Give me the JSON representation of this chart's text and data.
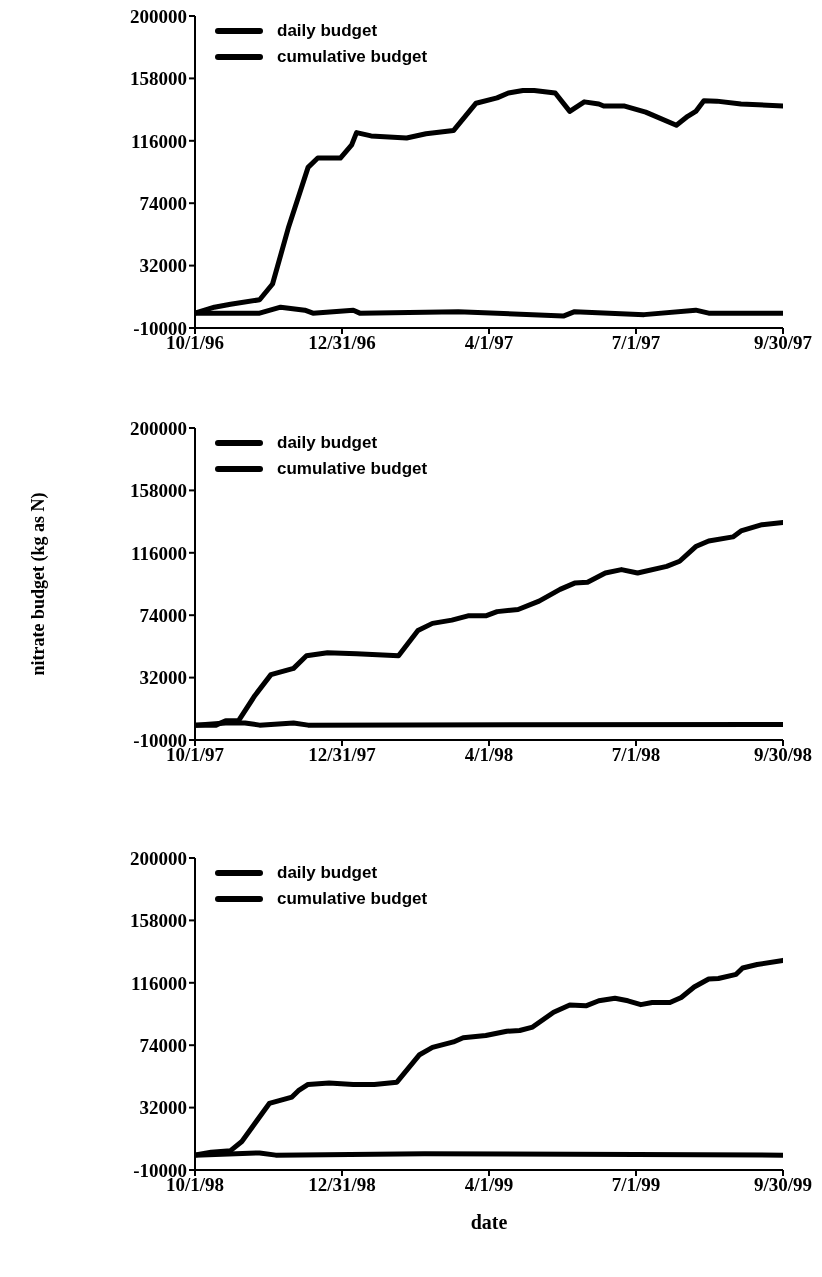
{
  "chart_data": [
    {
      "type": "line",
      "legend": "top left",
      "xlim": [
        "1996-10-01",
        "1997-09-30"
      ],
      "xticks": [
        {
          "value": "1996-10-01",
          "label": "10/1/96"
        },
        {
          "value": "1996-12-31",
          "label": "12/31/96"
        },
        {
          "value": "1997-04-01",
          "label": "4/1/97"
        },
        {
          "value": "1997-07-01",
          "label": "7/1/97"
        },
        {
          "value": "1997-09-30",
          "label": "9/30/97"
        }
      ],
      "ylim": [
        -10000,
        200000
      ],
      "yticks": [
        -10000,
        32000,
        74000,
        116000,
        158000,
        200000
      ],
      "series": [
        {
          "name": "daily budget",
          "color": "#000000",
          "x": [
            "1996-10-01",
            "1996-11-10",
            "1996-11-23",
            "1996-12-08",
            "1996-12-13",
            "1997-01-07",
            "1997-01-11",
            "1997-03-13",
            "1997-05-17",
            "1997-05-24",
            "1997-07-06",
            "1997-08-07",
            "1997-08-15",
            "1997-09-30"
          ],
          "values": [
            0,
            0,
            4000,
            2000,
            0,
            2000,
            0,
            1000,
            -2000,
            1000,
            -1000,
            2000,
            0,
            0
          ]
        },
        {
          "name": "cumulative budget",
          "color": "#000000",
          "x": [
            "1996-10-01",
            "1996-10-13",
            "1996-10-23",
            "1996-11-10",
            "1996-11-18",
            "1996-11-28",
            "1996-12-10",
            "1996-12-16",
            "1996-12-30",
            "1997-01-06",
            "1997-01-09",
            "1997-01-18",
            "1997-02-09",
            "1997-02-21",
            "1997-03-10",
            "1997-03-24",
            "1997-04-06",
            "1997-04-13",
            "1997-04-22",
            "1997-04-29",
            "1997-05-12",
            "1997-05-21",
            "1997-05-30",
            "1997-06-08",
            "1997-06-11",
            "1997-06-24",
            "1997-07-07",
            "1997-07-26",
            "1997-08-02",
            "1997-08-07",
            "1997-08-12",
            "1997-08-20",
            "1997-09-04",
            "1997-09-30"
          ],
          "values": [
            0,
            4000,
            6000,
            9000,
            19600,
            58200,
            98100,
            104400,
            104400,
            113200,
            121500,
            119300,
            117900,
            120700,
            122900,
            141300,
            144900,
            148200,
            149900,
            149900,
            148200,
            135800,
            142200,
            140800,
            139400,
            139400,
            135300,
            126500,
            132500,
            135800,
            143000,
            142700,
            140800,
            139400
          ]
        }
      ]
    },
    {
      "type": "line",
      "legend": "top left",
      "ylabel": "nitrate budget (kg as N)",
      "xlim": [
        "1997-10-01",
        "1998-09-30"
      ],
      "xticks": [
        {
          "value": "1997-10-01",
          "label": "10/1/97"
        },
        {
          "value": "1997-12-31",
          "label": "12/31/97"
        },
        {
          "value": "1998-04-01",
          "label": "4/1/98"
        },
        {
          "value": "1998-07-01",
          "label": "7/1/98"
        },
        {
          "value": "1998-09-30",
          "label": "9/30/98"
        }
      ],
      "ylim": [
        -10000,
        200000
      ],
      "yticks": [
        -10000,
        32000,
        74000,
        116000,
        158000,
        200000
      ],
      "series": [
        {
          "name": "daily budget",
          "color": "#000000",
          "x": [
            "1997-10-01",
            "1997-10-20",
            "1997-11-01",
            "1997-11-10",
            "1997-12-01",
            "1997-12-10",
            "1998-09-30"
          ],
          "values": [
            0,
            1500,
            1500,
            0,
            1500,
            0,
            500
          ]
        },
        {
          "name": "cumulative budget",
          "color": "#000000",
          "x": [
            "1997-10-01",
            "1997-10-14",
            "1997-10-20",
            "1997-10-28",
            "1997-11-07",
            "1997-11-17",
            "1997-12-01",
            "1997-12-09",
            "1997-12-22",
            "1998-01-09",
            "1998-02-04",
            "1998-02-16",
            "1998-02-25",
            "1998-03-09",
            "1998-03-19",
            "1998-03-30",
            "1998-04-06",
            "1998-04-19",
            "1998-05-02",
            "1998-05-15",
            "1998-05-24",
            "1998-06-01",
            "1998-06-12",
            "1998-06-22",
            "1998-07-02",
            "1998-07-20",
            "1998-07-28",
            "1998-08-07",
            "1998-08-15",
            "1998-08-30",
            "1998-09-04",
            "1998-09-17",
            "1998-09-30"
          ],
          "values": [
            0,
            0,
            3000,
            3000,
            19800,
            34000,
            38200,
            46700,
            48700,
            48100,
            46700,
            63700,
            68500,
            70700,
            73600,
            73600,
            76400,
            77800,
            83500,
            91400,
            95600,
            96200,
            102400,
            104700,
            102400,
            106900,
            110300,
            120200,
            123900,
            126700,
            130700,
            134900,
            136400
          ]
        }
      ]
    },
    {
      "type": "line",
      "legend": "top left",
      "xlabel": "date",
      "xlim": [
        "1998-10-01",
        "1999-09-30"
      ],
      "xticks": [
        {
          "value": "1998-10-01",
          "label": "10/1/98"
        },
        {
          "value": "1998-12-31",
          "label": "12/31/98"
        },
        {
          "value": "1999-04-01",
          "label": "4/1/99"
        },
        {
          "value": "1999-07-01",
          "label": "7/1/99"
        },
        {
          "value": "1999-09-30",
          "label": "9/30/99"
        }
      ],
      "ylim": [
        -10000,
        200000
      ],
      "yticks": [
        -10000,
        32000,
        74000,
        116000,
        158000,
        200000
      ],
      "series": [
        {
          "name": "daily budget",
          "color": "#000000",
          "x": [
            "1998-10-01",
            "1998-11-10",
            "1998-11-20",
            "1999-02-20",
            "1999-09-30"
          ],
          "values": [
            0,
            1500,
            0,
            1000,
            0
          ]
        },
        {
          "name": "cumulative budget",
          "color": "#000000",
          "x": [
            "1998-10-01",
            "1998-10-11",
            "1998-10-23",
            "1998-10-30",
            "1998-11-16",
            "1998-11-30",
            "1998-12-04",
            "1998-12-10",
            "1998-12-23",
            "1999-01-07",
            "1999-01-20",
            "1999-02-03",
            "1999-02-17",
            "1999-02-25",
            "1999-03-10",
            "1999-03-16",
            "1999-03-30",
            "1999-04-12",
            "1999-04-20",
            "1999-04-28",
            "1999-05-11",
            "1999-05-21",
            "1999-05-31",
            "1999-06-08",
            "1999-06-18",
            "1999-06-26",
            "1999-07-04",
            "1999-07-11",
            "1999-07-22",
            "1999-07-29",
            "1999-08-06",
            "1999-08-15",
            "1999-08-21",
            "1999-09-01",
            "1999-09-05",
            "1999-09-14",
            "1999-09-30"
          ],
          "values": [
            0,
            2000,
            3000,
            9200,
            34800,
            39100,
            43400,
            47600,
            48500,
            47600,
            47600,
            49100,
            67600,
            72500,
            76200,
            79000,
            80500,
            83400,
            83900,
            86200,
            96200,
            101000,
            100500,
            103900,
            105600,
            103900,
            101300,
            102700,
            102700,
            106100,
            113200,
            118600,
            118900,
            121700,
            126000,
            128300,
            131100
          ]
        }
      ]
    }
  ]
}
